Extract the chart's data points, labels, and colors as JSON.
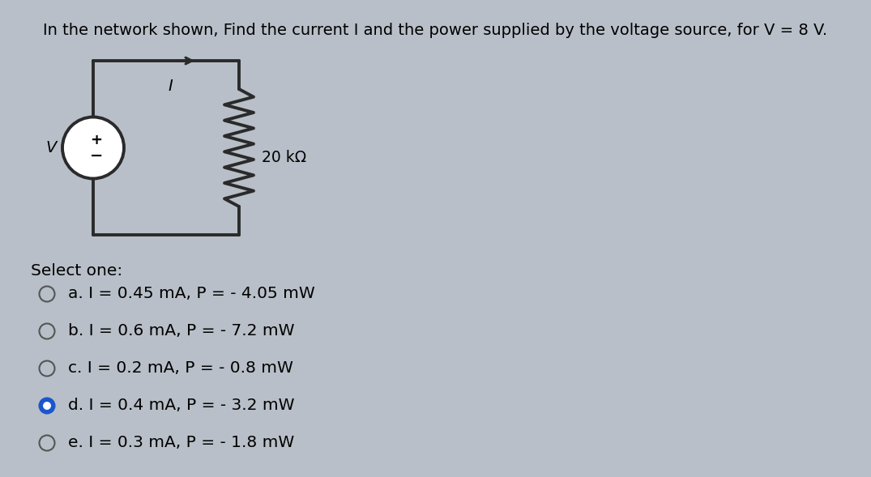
{
  "title": "In the network shown, Find the current I and the power supplied by the voltage source, for V = 8 V.",
  "bg_color": "#b8bfc8",
  "select_one_text": "Select one:",
  "options": [
    {
      "label": "a.",
      "text": "I = 0.45 mA, P = - 4.05 mW",
      "selected": false
    },
    {
      "label": "b.",
      "text": "I = 0.6 mA, P = - 7.2 mW",
      "selected": false
    },
    {
      "label": "c.",
      "text": "I = 0.2 mA, P = - 0.8 mW",
      "selected": false
    },
    {
      "label": "d.",
      "text": "I = 0.4 mA, P = - 3.2 mW",
      "selected": true
    },
    {
      "label": "e.",
      "text": "I = 0.3 mA, P = - 1.8 mW",
      "selected": false
    }
  ],
  "circuit": {
    "resistor_label": "20 kΩ",
    "current_label": "I",
    "voltage_label": "V"
  },
  "title_fontsize": 14,
  "option_fontsize": 14.5,
  "select_fontsize": 14.5,
  "line_color": "#2a2a2a"
}
